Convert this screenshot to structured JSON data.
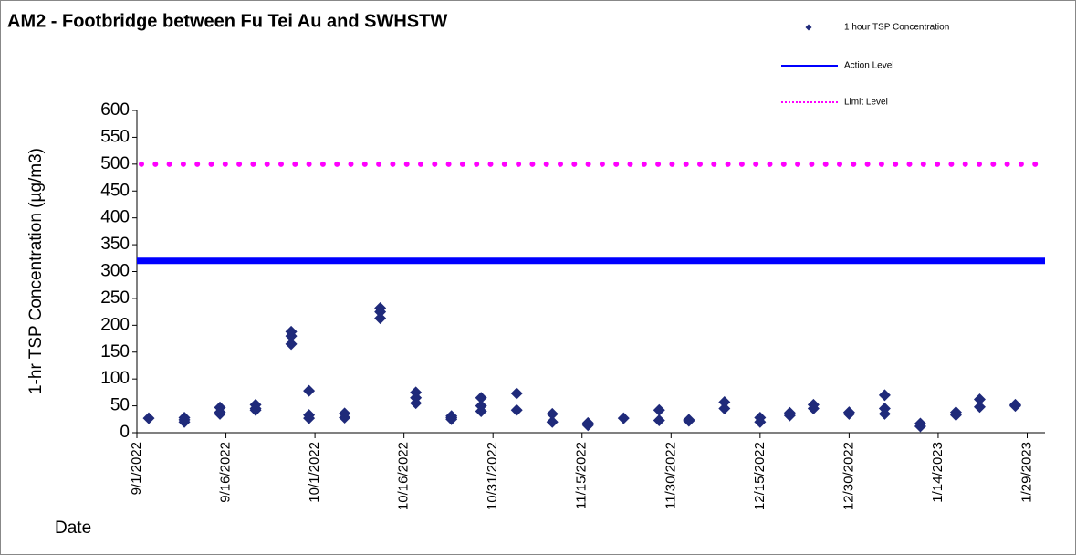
{
  "chart_data": {
    "type": "scatter",
    "title": "AM2 - Footbridge between Fu Tei Au and SWHSTW",
    "x_label": "Date",
    "y_label": "1-hr TSP Concentration (µg/m3)",
    "xlim": [
      "2022-09-01",
      "2023-02-01"
    ],
    "xticks": [
      {
        "value": "2022-09-01",
        "label": "9/1/2022"
      },
      {
        "value": "2022-09-16",
        "label": "9/16/2022"
      },
      {
        "value": "2022-10-01",
        "label": "10/1/2022"
      },
      {
        "value": "2022-10-16",
        "label": "10/16/2022"
      },
      {
        "value": "2022-10-31",
        "label": "10/31/2022"
      },
      {
        "value": "2022-11-15",
        "label": "11/15/2022"
      },
      {
        "value": "2022-11-30",
        "label": "11/30/2022"
      },
      {
        "value": "2022-12-15",
        "label": "12/15/2022"
      },
      {
        "value": "2022-12-30",
        "label": "12/30/2022"
      },
      {
        "value": "2023-01-14",
        "label": "1/14/2023"
      },
      {
        "value": "2023-01-29",
        "label": "1/29/2023"
      }
    ],
    "ylim": [
      0,
      600
    ],
    "yticks": [
      0,
      50,
      100,
      150,
      200,
      250,
      300,
      350,
      400,
      450,
      500,
      550,
      600
    ],
    "legend": "top-right",
    "series": [
      {
        "name": "1 hour TSP Concentration",
        "color": "#1f2a7a",
        "x": [
          "2022-09-03",
          "2022-09-09",
          "2022-09-09",
          "2022-09-09",
          "2022-09-15",
          "2022-09-15",
          "2022-09-15",
          "2022-09-21",
          "2022-09-21",
          "2022-09-21",
          "2022-09-27",
          "2022-09-27",
          "2022-09-27",
          "2022-09-30",
          "2022-09-30",
          "2022-09-30",
          "2022-10-06",
          "2022-10-06",
          "2022-10-12",
          "2022-10-12",
          "2022-10-12",
          "2022-10-18",
          "2022-10-18",
          "2022-10-18",
          "2022-10-24",
          "2022-10-24",
          "2022-10-24",
          "2022-10-29",
          "2022-10-29",
          "2022-10-29",
          "2022-11-04",
          "2022-11-04",
          "2022-11-10",
          "2022-11-10",
          "2022-11-16",
          "2022-11-16",
          "2022-11-22",
          "2022-11-28",
          "2022-11-28",
          "2022-12-03",
          "2022-12-03",
          "2022-12-09",
          "2022-12-09",
          "2022-12-15",
          "2022-12-15",
          "2022-12-20",
          "2022-12-20",
          "2022-12-24",
          "2022-12-24",
          "2022-12-30",
          "2022-12-30",
          "2023-01-05",
          "2023-01-05",
          "2023-01-05",
          "2023-01-11",
          "2023-01-11",
          "2023-01-17",
          "2023-01-17",
          "2023-01-21",
          "2023-01-21",
          "2023-01-27",
          "2023-01-27"
        ],
        "values": [
          27,
          28,
          20,
          24,
          47,
          35,
          38,
          52,
          42,
          45,
          188,
          180,
          165,
          78,
          33,
          27,
          36,
          28,
          232,
          225,
          213,
          75,
          65,
          55,
          31,
          28,
          25,
          65,
          50,
          40,
          73,
          42,
          35,
          20,
          18,
          14,
          27,
          42,
          23,
          24,
          22,
          57,
          45,
          28,
          20,
          37,
          32,
          52,
          45,
          38,
          35,
          70,
          45,
          35,
          17,
          12,
          38,
          33,
          62,
          48,
          52,
          50
        ]
      },
      {
        "name": "Action Level",
        "color": "#0000ff",
        "value": 320
      },
      {
        "name": "Limit Level",
        "color": "#ff00ff",
        "value": 500
      }
    ]
  }
}
